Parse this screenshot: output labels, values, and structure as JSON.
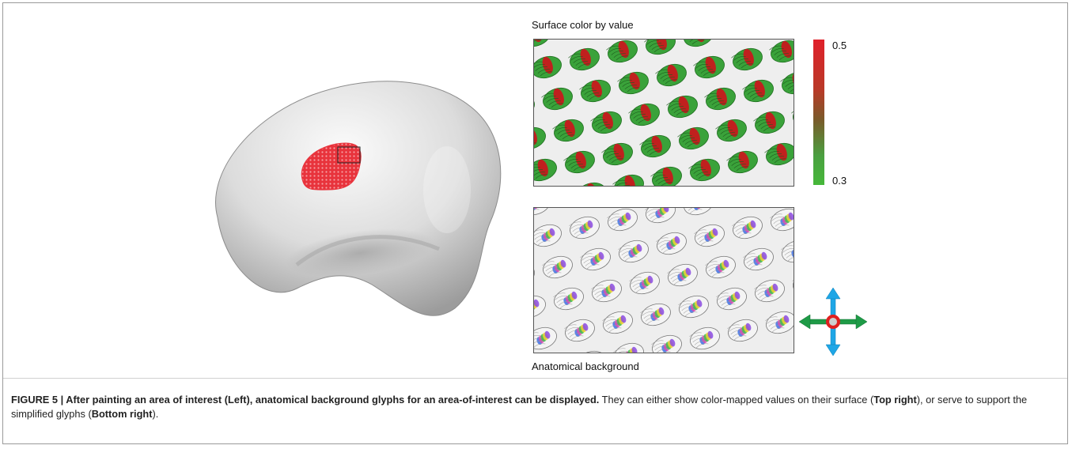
{
  "panels": {
    "top_label": "Surface color by value",
    "bottom_label": "Anatomical background"
  },
  "colorbar": {
    "max_label": "0.5",
    "min_label": "0.3",
    "colors": {
      "high": "#e0202a",
      "low": "#46b83a"
    }
  },
  "caption": {
    "title": "FIGURE 5 | After painting an area of interest (Left), anatomical background glyphs for an area-of-interest can be displayed.",
    "text_1": " They can either show color-mapped values on their surface (",
    "bold_1": "Top right",
    "text_2": "), or serve to support the simplified glyphs (",
    "bold_2": "Bottom right",
    "text_3": ")."
  },
  "colors": {
    "brain_surface": "#d9d9d9",
    "painted_region": "#e8333c",
    "glyph_green": "#3aa23a",
    "glyph_red": "#c0201e",
    "arrow_blue": "#1ea6e6",
    "arrow_green": "#1e9a46",
    "center_ring": "#e02020"
  },
  "icons": {
    "navigation": "pan-arrows-icon"
  }
}
